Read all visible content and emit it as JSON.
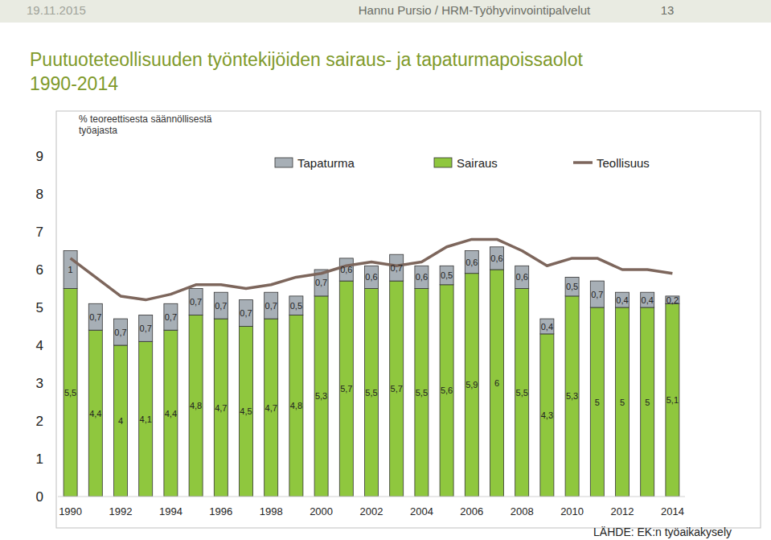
{
  "page": {
    "date": "19.11.2015",
    "author": "Hannu Pursio / HRM-Työhyvinvointipalvelut",
    "page_number": 13,
    "source": "LÄHDE: EK:n työaikakysely"
  },
  "chart_data": {
    "type": "bar",
    "title": [
      "Puutuoteteollisuuden työntekijöiden sairaus- ja tapaturmapoissaolot",
      "1990-2014"
    ],
    "subtitle": [
      "% teoreettisesta säännöllisestä",
      "työajasta"
    ],
    "categories": [
      "1990",
      null,
      "1992",
      null,
      "1994",
      null,
      "1996",
      null,
      "1998",
      null,
      "2000",
      null,
      "2002",
      null,
      "2004",
      null,
      "2006",
      null,
      "2008",
      null,
      "2010",
      null,
      "2012",
      null,
      "2014"
    ],
    "series": [
      {
        "name": "Tapaturma",
        "type": "bar",
        "color": "#a7afb6",
        "values": [
          1,
          0.7,
          0.7,
          0.7,
          0.7,
          0.7,
          0.7,
          0.7,
          0.7,
          0.5,
          0.7,
          0.6,
          0.6,
          0.7,
          0.6,
          0.5,
          0.6,
          0.6,
          0.6,
          0.4,
          0.5,
          0.7,
          0.4,
          0.4,
          0.2
        ],
        "value_labels": [
          "1",
          "0,7",
          "0,7",
          "0,7",
          "0,7",
          "0,7",
          "0,7",
          "0,7",
          "0,7",
          "0,5",
          "0,7",
          "0,6",
          "0,6",
          "0,7",
          "0,6",
          "0,5",
          "0,6",
          "0,6",
          "0,6",
          "0,4",
          "0,5",
          "0,7",
          "0,4",
          "0,4",
          "0,2"
        ]
      },
      {
        "name": "Sairaus",
        "type": "bar",
        "color": "#8fc73e",
        "values": [
          5.5,
          4.4,
          4,
          4.1,
          4.4,
          4.8,
          4.7,
          4.5,
          4.7,
          4.8,
          5.3,
          5.7,
          5.5,
          5.7,
          5.5,
          5.6,
          5.9,
          6,
          5.5,
          4.3,
          5.3,
          5,
          5,
          5,
          5.1
        ],
        "value_labels": [
          "5,5",
          "4,4",
          "4",
          "4,1",
          "4,4",
          "4,8",
          "4,7",
          "4,5",
          "4,7",
          "4,8",
          "5,3",
          "5,7",
          "5,5",
          "5,7",
          "5,5",
          "5,6",
          "5,9",
          "6",
          "5,5",
          "4,3",
          "5,3",
          "5",
          "5",
          "5",
          "5,1"
        ]
      },
      {
        "name": "Teollisuus",
        "type": "line",
        "color": "#7d665c",
        "values": [
          6.3,
          5.8,
          5.3,
          5.2,
          5.35,
          5.6,
          5.6,
          5.5,
          5.6,
          5.8,
          5.9,
          6.1,
          6.2,
          6.1,
          6.2,
          6.6,
          6.8,
          6.8,
          6.5,
          6.1,
          6.3,
          6.3,
          6.0,
          6.0,
          5.9
        ]
      }
    ],
    "stacked": true,
    "data_labels": true,
    "grid": false,
    "legend": "top",
    "ylim": [
      0,
      9
    ],
    "yticks": [
      0,
      1,
      2,
      3,
      4,
      5,
      6,
      7,
      8,
      9
    ]
  }
}
